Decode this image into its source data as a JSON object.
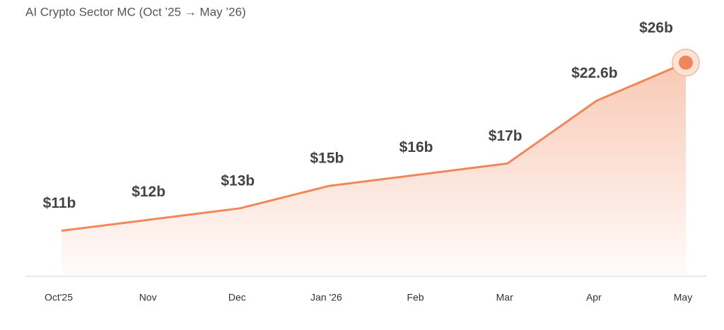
{
  "chart_data": {
    "type": "area",
    "title": "AI Crypto Sector MC (Oct ’25 → May ’26)",
    "categories": [
      "Oct'25",
      "Nov",
      "Dec",
      "Jan '26",
      "Feb",
      "Mar",
      "Apr",
      "May"
    ],
    "values": [
      11,
      12,
      13,
      15,
      16,
      17,
      22.6,
      26
    ],
    "value_labels": [
      "$11b",
      "$12b",
      "$13b",
      "$15b",
      "$16b",
      "$17b",
      "$22.6b",
      "$26b"
    ],
    "color": "#f0875a",
    "ylim": [
      7,
      29
    ]
  }
}
